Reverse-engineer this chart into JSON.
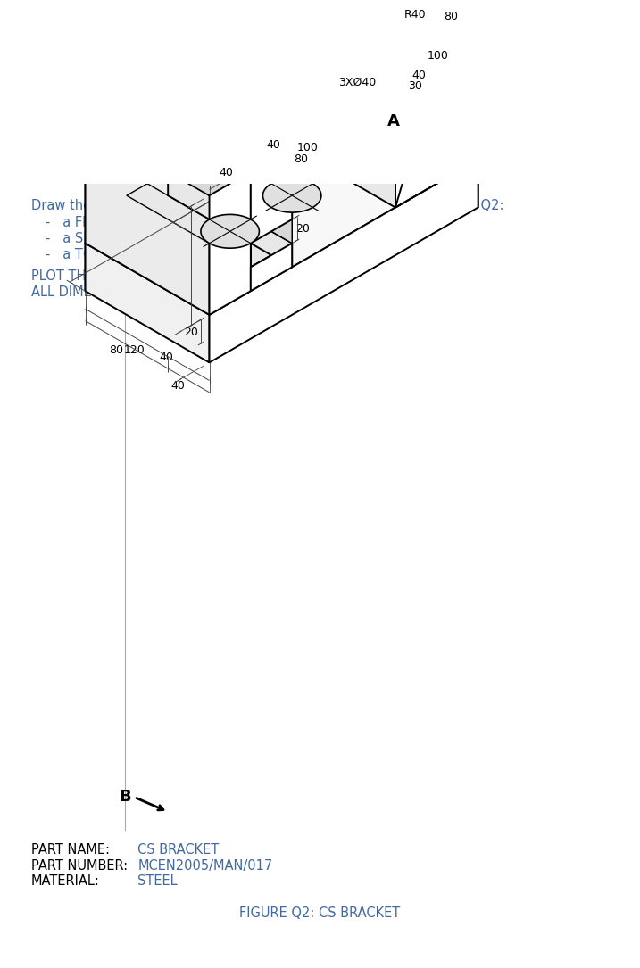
{
  "title_text": "Draw the following orthographic views of the object shown in Figure Q2:",
  "bullet1": "a FRONT view from A",
  "bullet2": "a SIDE view from B",
  "bullet3": "a TOP view",
  "note1": "PLOT THE DRAWING ON A SCALE OF 1:2",
  "note2": "ALL DIMENSIONS ARE IN MILLIMETRES",
  "part_name_label": "PART NAME:",
  "part_name_value": "CS BRACKET",
  "part_number_label": "PART NUMBER:",
  "part_number_value": "MCEN2005/MAN/017",
  "material_label": "MATERIAL:",
  "material_value": "STEEL",
  "figure_caption": "FIGURE Q2: CS BRACKET",
  "text_color": "#4169a0",
  "bg_color": "#ffffff"
}
